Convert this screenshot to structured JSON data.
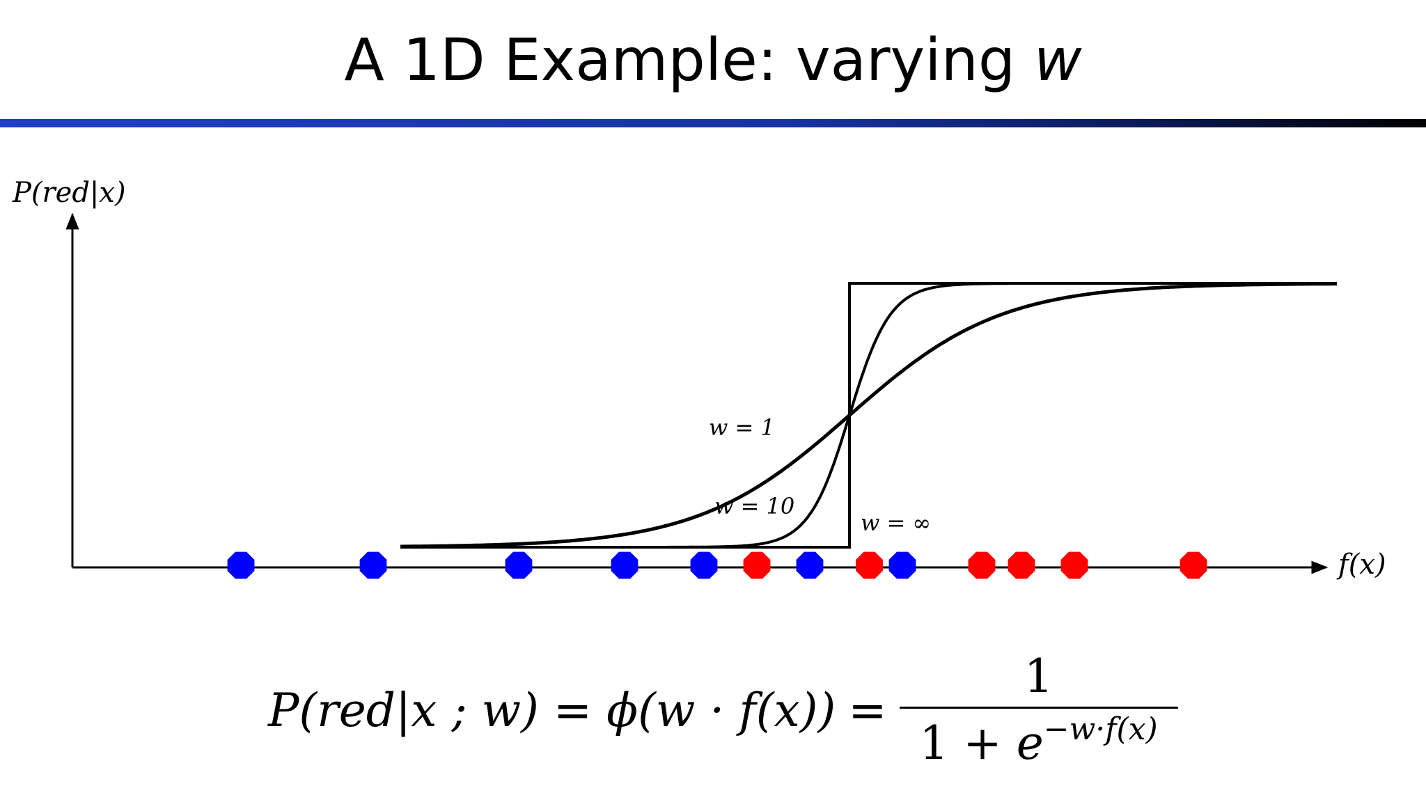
{
  "slide": {
    "title_prefix": "A 1D Example: varying ",
    "title_var": "w"
  },
  "axes": {
    "y_label": "P(red|x)",
    "x_label": "f(x)"
  },
  "curve_labels": {
    "w1": "w = 1",
    "w10": "w = 10",
    "winf": "w = ∞"
  },
  "points": [
    {
      "f": -4.6,
      "color": "blue"
    },
    {
      "f": -3.6,
      "color": "blue"
    },
    {
      "f": -2.5,
      "color": "blue"
    },
    {
      "f": -1.7,
      "color": "blue"
    },
    {
      "f": -1.1,
      "color": "blue"
    },
    {
      "f": -0.7,
      "color": "red"
    },
    {
      "f": -0.3,
      "color": "blue"
    },
    {
      "f": 0.15,
      "color": "red"
    },
    {
      "f": 0.4,
      "color": "blue"
    },
    {
      "f": 1.0,
      "color": "red"
    },
    {
      "f": 1.3,
      "color": "red"
    },
    {
      "f": 1.7,
      "color": "red"
    },
    {
      "f": 2.6,
      "color": "red"
    }
  ],
  "colors": {
    "red": "#ff0000",
    "blue": "#0000ff"
  },
  "formula": {
    "lhs": "P(red|x ; w) = ϕ(w · f(x))",
    "eq": "=",
    "numerator": "1",
    "den_base": "1 + ",
    "den_e": "e",
    "den_exp": "−w·f(x)"
  }
}
